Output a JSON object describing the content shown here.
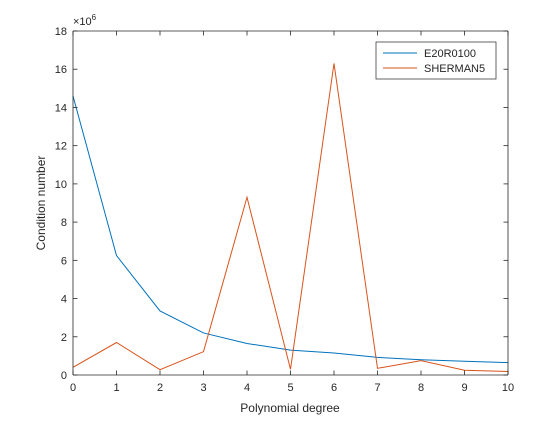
{
  "chart_data": {
    "type": "line",
    "title": "",
    "xlabel": "Polynomial degree",
    "ylabel": "Condition number",
    "y_multiplier": {
      "base": "×10",
      "exponent": "6"
    },
    "xlim": [
      0,
      10
    ],
    "ylim": [
      0,
      18
    ],
    "x_ticks": [
      0,
      1,
      2,
      3,
      4,
      5,
      6,
      7,
      8,
      9,
      10
    ],
    "y_ticks": [
      0,
      2,
      4,
      6,
      8,
      10,
      12,
      14,
      16,
      18
    ],
    "grid": false,
    "legend_position": "top-right",
    "x": [
      0,
      1,
      2,
      3,
      4,
      5,
      6,
      7,
      8,
      9,
      10
    ],
    "series": [
      {
        "name": "E20R0100",
        "color": "#0072BD",
        "values": [
          14.6,
          6.25,
          3.35,
          2.2,
          1.65,
          1.3,
          1.15,
          0.92,
          0.8,
          0.72,
          0.65
        ]
      },
      {
        "name": "SHERMAN5",
        "color": "#D95319",
        "values": [
          0.4,
          1.7,
          0.28,
          1.22,
          9.3,
          0.3,
          16.3,
          0.35,
          0.75,
          0.25,
          0.18
        ]
      }
    ]
  }
}
